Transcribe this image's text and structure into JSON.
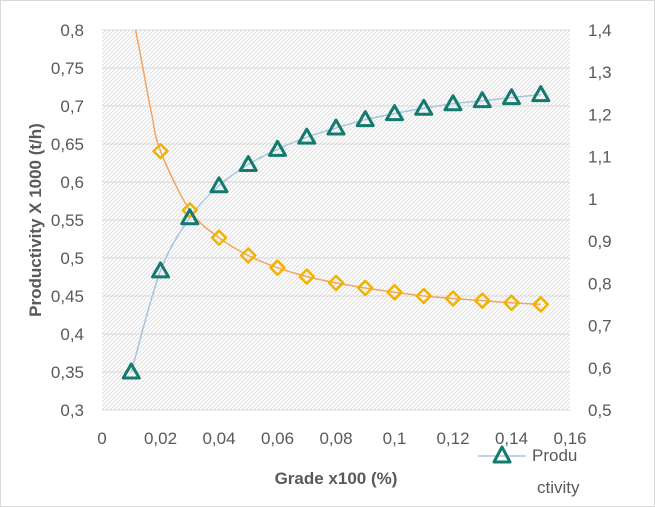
{
  "chart_data": {
    "type": "line",
    "xlabel": "Grade x100 (%)",
    "ylabel": "Productivity X 1000 (t/h)",
    "xlim": [
      0,
      0.16
    ],
    "x_ticks": [
      "0",
      "0,02",
      "0,04",
      "0,06",
      "0,08",
      "0,1",
      "0,12",
      "0,14",
      "0,16"
    ],
    "ylim": [
      0.3,
      0.8
    ],
    "y_ticks": [
      "0,3",
      "0,35",
      "0,4",
      "0,45",
      "0,5",
      "0,55",
      "0,6",
      "0,65",
      "0,7",
      "0,75",
      "0,8"
    ],
    "y2lim": [
      0.5,
      1.4
    ],
    "y2_ticks": [
      "0,5",
      "0,6",
      "0,7",
      "0,8",
      "0,9",
      "1",
      "1,1",
      "1,2",
      "1,3",
      "1,4"
    ],
    "grid": true,
    "legend_position": "bottom-right",
    "series": [
      {
        "name": "Productivity",
        "axis": "left",
        "marker": "triangle",
        "color": "#127a6f",
        "line_color": "#a9c4e0",
        "x": [
          0.01,
          0.02,
          0.03,
          0.04,
          0.05,
          0.06,
          0.07,
          0.08,
          0.09,
          0.1,
          0.11,
          0.12,
          0.13,
          0.14,
          0.15
        ],
        "values": [
          0.35,
          0.483,
          0.553,
          0.595,
          0.623,
          0.643,
          0.659,
          0.671,
          0.682,
          0.69,
          0.697,
          0.703,
          0.707,
          0.711,
          0.715
        ]
      },
      {
        "axis": "right",
        "marker": "diamond",
        "color": "#f0b400",
        "line_color": "#f4a460",
        "x": [
          0.02,
          0.03,
          0.04,
          0.05,
          0.06,
          0.07,
          0.08,
          0.09,
          0.1,
          0.11,
          0.12,
          0.13,
          0.14,
          0.15
        ],
        "values": [
          1.113,
          0.973,
          0.908,
          0.866,
          0.837,
          0.816,
          0.801,
          0.789,
          0.779,
          0.77,
          0.764,
          0.759,
          0.754,
          0.75
        ],
        "curve_extension": {
          "x": [
            0.0115,
            0.014,
            0.017,
            0.02
          ],
          "values": [
            1.4,
            1.31,
            1.2,
            1.113
          ]
        }
      }
    ],
    "legend_label": [
      "Produ",
      "ctivity"
    ]
  }
}
